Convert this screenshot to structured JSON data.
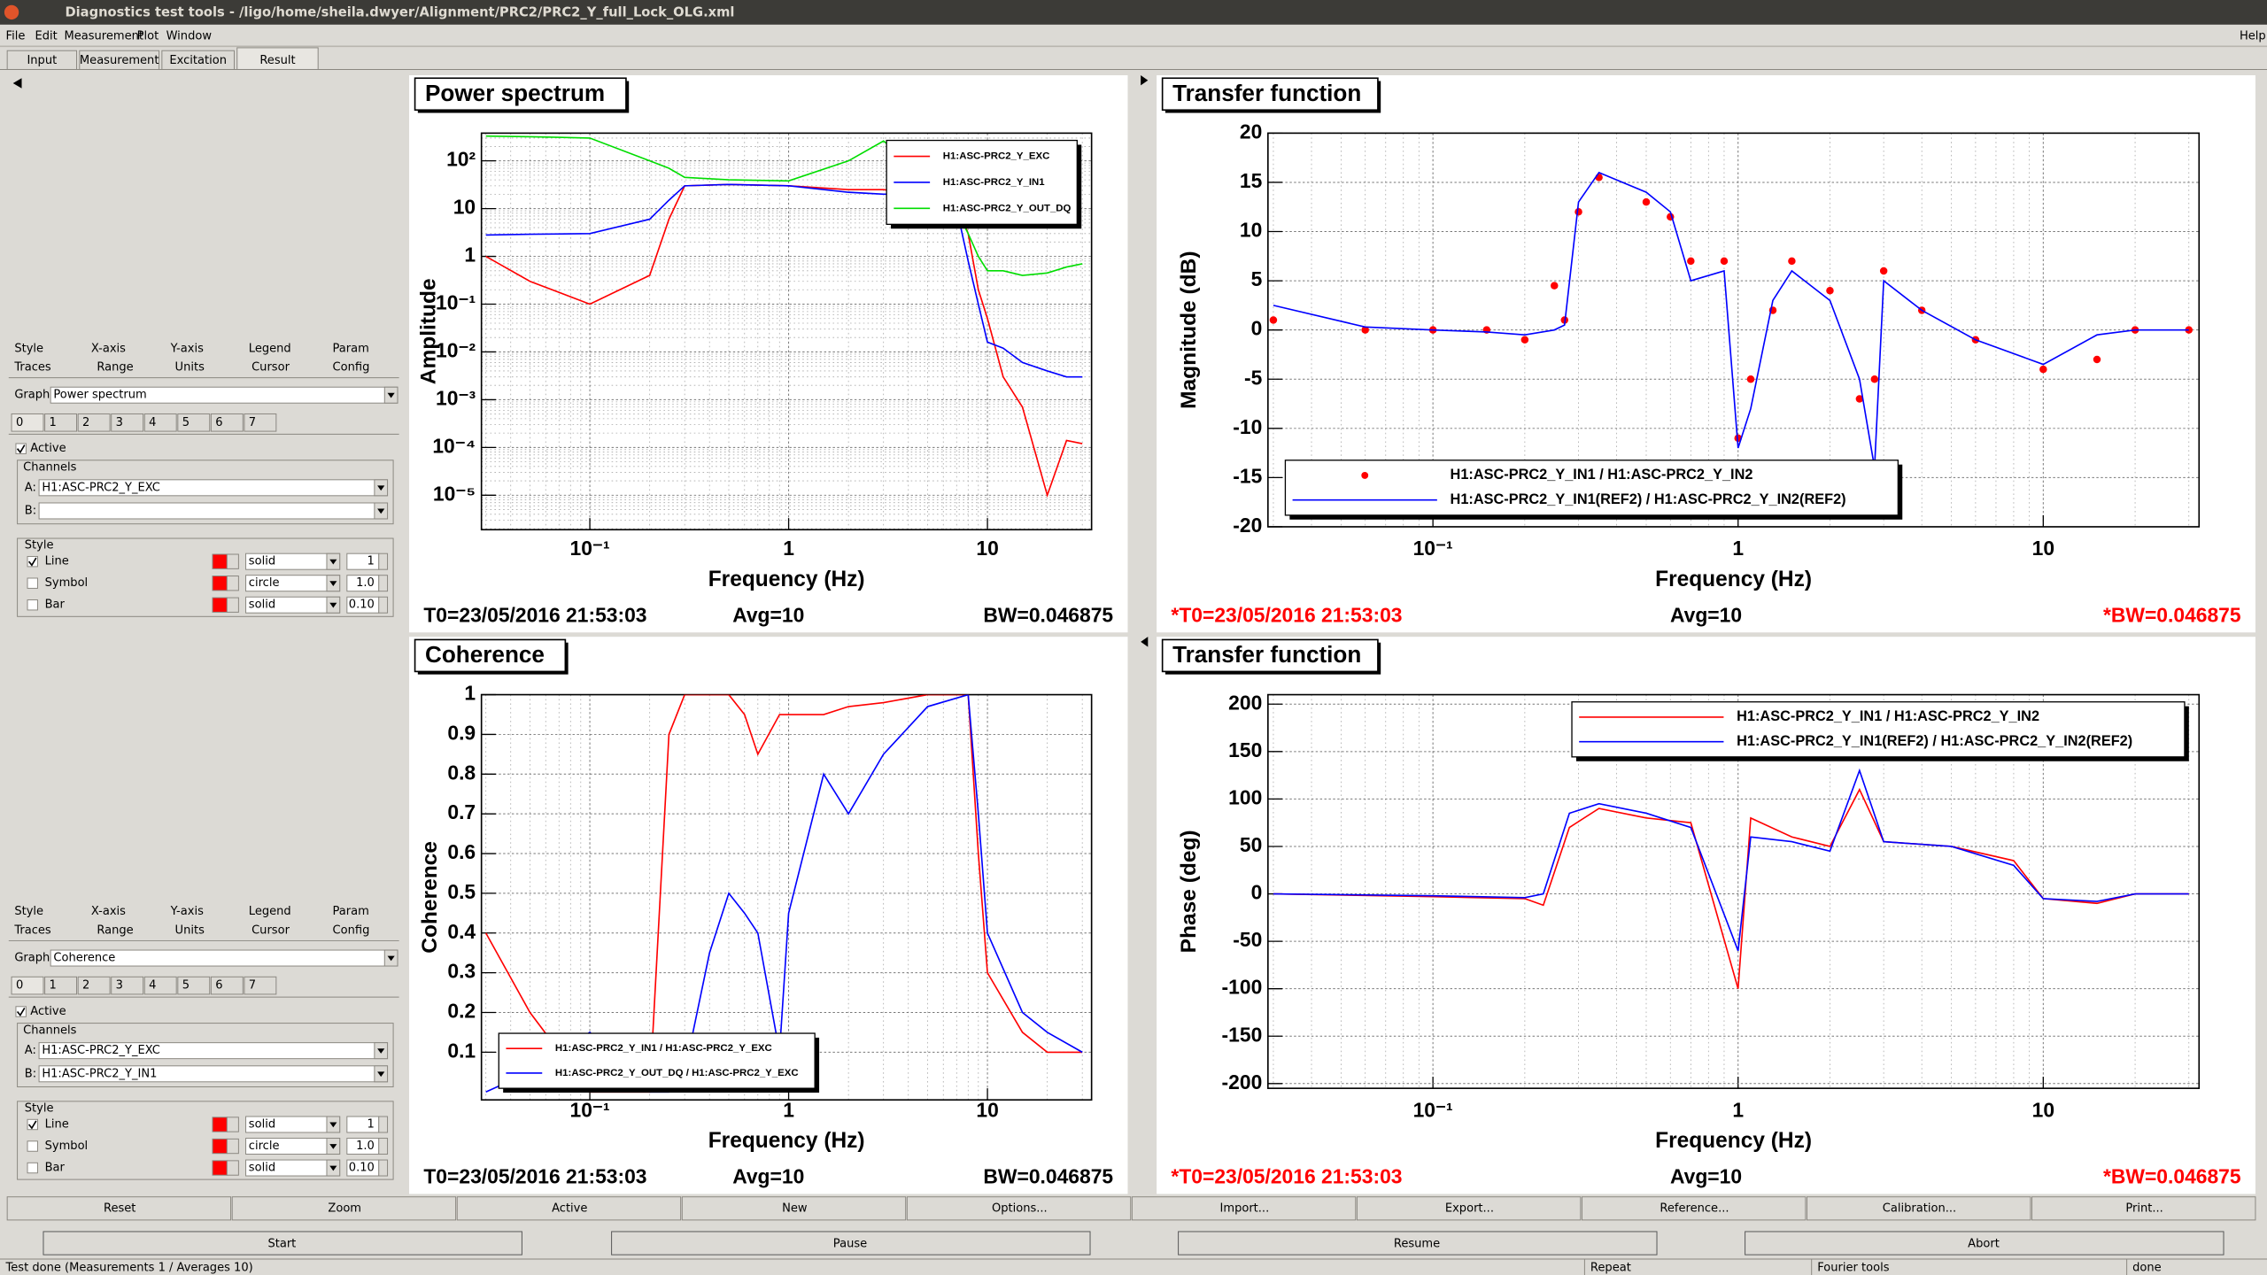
{
  "window": {
    "title": "Diagnostics test tools - /ligo/home/sheila.dwyer/Alignment/PRC2/PRC2_Y_full_Lock_OLG.xml",
    "menu": [
      "File",
      "Edit",
      "Measurement",
      "Plot",
      "Window"
    ],
    "help": "Help"
  },
  "tabs": [
    "Input",
    "Measurement",
    "Excitation",
    "Result"
  ],
  "selected_tab": 3,
  "panels": [
    {
      "tabs_row1": [
        "Style",
        "X-axis",
        "Y-axis",
        "Legend",
        "Param"
      ],
      "tabs_row2": [
        "Traces",
        "Range",
        "Units",
        "Cursor",
        "Config"
      ],
      "graph_label": "Graph:",
      "graph": "Power spectrum",
      "traces": [
        "0",
        "1",
        "2",
        "3",
        "4",
        "5",
        "6",
        "7"
      ],
      "active": "Active",
      "active_checked": true,
      "channels": "Channels",
      "a_label": "A:",
      "a": "H1:ASC-PRC2_Y_EXC",
      "b_label": "B:",
      "style": "Style",
      "styles": [
        {
          "name": "Line",
          "checked": true,
          "type": "solid",
          "width": "1"
        },
        {
          "name": "Symbol",
          "checked": false,
          "type": "circle",
          "width": "1.0"
        },
        {
          "name": "Bar",
          "checked": false,
          "type": "solid",
          "width": "0.10"
        }
      ]
    },
    {
      "tabs_row1": [
        "Style",
        "X-axis",
        "Y-axis",
        "Legend",
        "Param"
      ],
      "tabs_row2": [
        "Traces",
        "Range",
        "Units",
        "Cursor",
        "Config"
      ],
      "graph_label": "Graph:",
      "graph": "Coherence",
      "traces": [
        "0",
        "1",
        "2",
        "3",
        "4",
        "5",
        "6",
        "7"
      ],
      "active": "Active",
      "active_checked": true,
      "channels": "Channels",
      "a_label": "A:",
      "a": "H1:ASC-PRC2_Y_EXC",
      "b_label": "B:",
      "b": "H1:ASC-PRC2_Y_IN1",
      "style": "Style",
      "styles": [
        {
          "name": "Line",
          "checked": true,
          "type": "solid",
          "width": "1"
        },
        {
          "name": "Symbol",
          "checked": false,
          "type": "circle",
          "width": "1.0"
        },
        {
          "name": "Bar",
          "checked": false,
          "type": "solid",
          "width": "0.10"
        }
      ]
    }
  ],
  "charts": [
    {
      "type": "line",
      "title": "Power spectrum",
      "xlabel": "Frequency (Hz)",
      "ylabel": "Amplitude",
      "xlog": true,
      "ylog": true,
      "grid": true,
      "legend": "upper right",
      "xlim": [
        0.0285,
        33.4
      ],
      "xticks": [
        {
          "value": 0.1,
          "label": "10⁻¹"
        },
        1,
        10
      ],
      "ylim": [
        1.9e-06,
        380
      ],
      "yticks": [
        {
          "value": 100,
          "label": "10²"
        },
        10,
        1,
        {
          "value": 0.1,
          "label": "10⁻¹"
        },
        {
          "value": 0.01,
          "label": "10⁻²"
        },
        {
          "value": 0.001,
          "label": "10⁻³"
        },
        {
          "value": 0.0001,
          "label": "10⁻⁴"
        },
        {
          "value": 1e-05,
          "label": "10⁻⁵"
        }
      ],
      "x": [
        0.03,
        0.05,
        0.1,
        0.2,
        0.25,
        0.3,
        0.5,
        1,
        2,
        3,
        4,
        5,
        7,
        8,
        9,
        10,
        12,
        15,
        20,
        25,
        30
      ],
      "series": [
        {
          "name": "H1:ASC-PRC2_Y_EXC",
          "color": "#ff0000",
          "style": "line",
          "values": [
            1,
            0.3,
            0.1,
            0.4,
            6,
            30,
            32,
            30,
            25,
            25,
            22,
            20,
            13,
            3,
            0.2,
            0.05,
            0.003,
            0.0007,
            1e-05,
            0.00014,
            0.00012
          ]
        },
        {
          "name": "H1:ASC-PRC2_Y_IN1",
          "color": "#0000ff",
          "style": "line",
          "values": [
            2.8,
            2.9,
            3,
            6,
            15,
            30,
            32,
            30,
            22,
            20,
            20,
            18,
            10,
            0.8,
            0.1,
            0.016,
            0.012,
            0.006,
            0.004,
            0.003,
            0.003
          ]
        },
        {
          "name": "H1:ASC-PRC2_Y_OUT_DQ",
          "color": "#00dd00",
          "style": "line",
          "values": [
            330,
            320,
            300,
            100,
            70,
            45,
            40,
            38,
            100,
            260,
            100,
            38,
            9,
            3,
            1,
            0.5,
            0.5,
            0.4,
            0.45,
            0.6,
            0.7
          ]
        }
      ],
      "footer": [
        {
          "text": "T0=23/05/2016 21:53:03",
          "color": "#000000"
        },
        {
          "text": "Avg=10",
          "color": "#000000"
        },
        {
          "text": "BW=0.046875",
          "color": "#000000"
        }
      ]
    },
    {
      "type": "line",
      "title": "Transfer function",
      "xlabel": "Frequency (Hz)",
      "ylabel": "Magnitude (dB)",
      "xlog": true,
      "ylog": false,
      "grid": true,
      "legend": "lower left",
      "xlim": [
        0.0288,
        32.4
      ],
      "xticks": [
        {
          "value": 0.1,
          "label": "10⁻¹"
        },
        1,
        10
      ],
      "ylim": [
        -20,
        20
      ],
      "yticks": [
        -20,
        -15,
        -10,
        -5,
        0,
        5,
        10,
        15,
        20
      ],
      "x": [
        0.03,
        0.06,
        0.1,
        0.15,
        0.2,
        0.25,
        0.27,
        0.3,
        0.35,
        0.5,
        0.6,
        0.7,
        0.9,
        1,
        1.1,
        1.3,
        1.5,
        2,
        2.5,
        2.8,
        3,
        4,
        6,
        10,
        15,
        20,
        30
      ],
      "series": [
        {
          "name": "H1:ASC-PRC2_Y_IN1 / H1:ASC-PRC2_Y_IN2",
          "color": "#ff0000",
          "style": "marker",
          "values": [
            1,
            0,
            0,
            0,
            -1,
            4.5,
            1,
            12,
            15.5,
            13,
            11.5,
            7,
            7,
            -11,
            -5,
            2,
            7,
            4,
            -7,
            -5,
            6,
            2,
            -1,
            -4,
            -3,
            0,
            0
          ]
        },
        {
          "name": "H1:ASC-PRC2_Y_IN1(REF2) / H1:ASC-PRC2_Y_IN2(REF2)",
          "color": "#0000ff",
          "style": "line",
          "values": [
            2.5,
            0.3,
            0,
            -0.2,
            -0.5,
            0,
            0.5,
            13,
            16,
            14,
            12,
            5,
            6,
            -12,
            -8,
            3,
            6,
            3,
            -5,
            -14,
            5,
            2,
            -1,
            -3.5,
            -0.5,
            0,
            0
          ]
        }
      ],
      "footer": [
        {
          "text": "*T0=23/05/2016 21:53:03",
          "color": "#ff0000"
        },
        {
          "text": "Avg=10",
          "color": "#000000"
        },
        {
          "text": "*BW=0.046875",
          "color": "#ff0000"
        }
      ]
    },
    {
      "type": "line",
      "title": "Coherence",
      "xlabel": "Frequency (Hz)",
      "ylabel": "Coherence",
      "xlog": true,
      "ylog": false,
      "grid": true,
      "legend": "lower left",
      "xlim": [
        0.0285,
        33.4
      ],
      "xticks": [
        {
          "value": 0.1,
          "label": "10⁻¹"
        },
        1,
        10
      ],
      "ylim": [
        -0.02,
        1
      ],
      "yticks": [
        0.1,
        0.2,
        0.3,
        0.4,
        0.5,
        0.6,
        0.7,
        0.8,
        0.9,
        1
      ],
      "x": [
        0.03,
        0.05,
        0.1,
        0.2,
        0.25,
        0.3,
        0.4,
        0.5,
        0.6,
        0.7,
        0.9,
        1,
        1.5,
        2,
        3,
        5,
        8,
        9,
        10,
        15,
        20,
        30
      ],
      "series": [
        {
          "name": "H1:ASC-PRC2_Y_IN1 / H1:ASC-PRC2_Y_EXC",
          "color": "#ff0000",
          "style": "line",
          "values": [
            0.4,
            0.2,
            0,
            0,
            0.9,
            1,
            1,
            1,
            0.95,
            0.85,
            0.95,
            0.95,
            0.95,
            0.97,
            0.98,
            1,
            1,
            0.6,
            0.3,
            0.15,
            0.1,
            0.1
          ]
        },
        {
          "name": "H1:ASC-PRC2_Y_OUT_DQ / H1:ASC-PRC2_Y_EXC",
          "color": "#0000ff",
          "style": "line",
          "values": [
            0,
            0.05,
            0.15,
            0,
            0,
            0.05,
            0.35,
            0.5,
            0.45,
            0.4,
            0.1,
            0.45,
            0.8,
            0.7,
            0.85,
            0.97,
            1,
            0.7,
            0.4,
            0.2,
            0.15,
            0.1
          ]
        }
      ],
      "footer": [
        {
          "text": "T0=23/05/2016 21:53:03",
          "color": "#000000"
        },
        {
          "text": "Avg=10",
          "color": "#000000"
        },
        {
          "text": "BW=0.046875",
          "color": "#000000"
        }
      ]
    },
    {
      "type": "line",
      "title": "Transfer function",
      "xlabel": "Frequency (Hz)",
      "ylabel": "Phase (deg)",
      "xlog": true,
      "ylog": false,
      "grid": true,
      "legend": "upper right",
      "xlim": [
        0.0288,
        32.4
      ],
      "xticks": [
        {
          "value": 0.1,
          "label": "10⁻¹"
        },
        1,
        10
      ],
      "ylim": [
        -205,
        210
      ],
      "yticks": [
        -200,
        -150,
        -100,
        -50,
        0,
        50,
        100,
        150,
        200
      ],
      "x": [
        0.03,
        0.1,
        0.2,
        0.23,
        0.28,
        0.35,
        0.5,
        0.7,
        1,
        1.1,
        1.5,
        2,
        2.5,
        3,
        5,
        8,
        10,
        15,
        20,
        30
      ],
      "series": [
        {
          "name": "H1:ASC-PRC2_Y_IN1 / H1:ASC-PRC2_Y_IN2",
          "color": "#ff0000",
          "style": "line",
          "values": [
            0,
            -3,
            -5,
            -12,
            70,
            90,
            80,
            75,
            -100,
            80,
            60,
            50,
            110,
            55,
            50,
            35,
            -5,
            -10,
            0,
            0
          ]
        },
        {
          "name": "H1:ASC-PRC2_Y_IN1(REF2) / H1:ASC-PRC2_Y_IN2(REF2)",
          "color": "#0000ff",
          "style": "line",
          "values": [
            0,
            -2,
            -4,
            0,
            85,
            95,
            85,
            70,
            -60,
            60,
            55,
            45,
            130,
            55,
            50,
            30,
            -5,
            -8,
            0,
            0
          ]
        }
      ],
      "footer": [
        {
          "text": "*T0=23/05/2016 21:53:03",
          "color": "#ff0000"
        },
        {
          "text": "Avg=10",
          "color": "#000000"
        },
        {
          "text": "*BW=0.046875",
          "color": "#ff0000"
        }
      ]
    }
  ],
  "buttons": [
    "Reset",
    "Zoom",
    "Active",
    "New",
    "Options...",
    "Import...",
    "Export...",
    "Reference...",
    "Calibration...",
    "Print..."
  ],
  "run_buttons": [
    "Start",
    "Pause",
    "Resume",
    "Abort"
  ],
  "status": [
    "Test done (Measurements 1 / Averages 10)",
    "Repeat",
    "Fourier tools",
    "done"
  ]
}
